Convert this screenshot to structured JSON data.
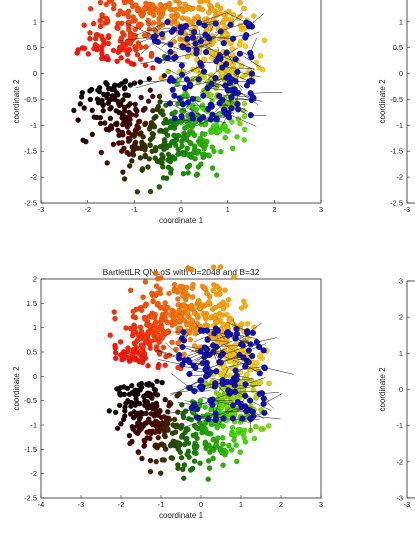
{
  "colors": {
    "gradient": [
      "#ff1000",
      "#ff8000",
      "#ffd000",
      "#40e000",
      "#108000",
      "#500000",
      "#000000"
    ],
    "blue": "#1010c0"
  },
  "chart_data": [
    {
      "type": "scatter",
      "title": "",
      "xlabel": "coordinate 1",
      "ylabel": "coordinate 2",
      "xlim": [
        -3,
        3
      ],
      "ylim": [
        -2.5,
        2
      ],
      "xticks": [
        "-3",
        "-2",
        "-1",
        "0",
        "1",
        "2",
        "3"
      ],
      "yticks": [
        "-2.5",
        "-2",
        "-1.5",
        "-1",
        "-0.5",
        "0",
        "0.5",
        "1",
        "1.5"
      ],
      "grid": false
    },
    {
      "type": "scatter",
      "title": "BartlettLR QNLoS with U=2048 and B=32",
      "xlabel": "coordinate 1",
      "ylabel": "coordinate 2",
      "xlim": [
        -4,
        3
      ],
      "ylim": [
        -2.5,
        2
      ],
      "xticks": [
        "-4",
        "-3",
        "-2",
        "-1",
        "0",
        "1",
        "2",
        "3"
      ],
      "yticks": [
        "-2.5",
        "-2",
        "-1.5",
        "-1",
        "-0.5",
        "0",
        "0.5",
        "1",
        "1.5",
        "2"
      ],
      "grid": false
    },
    {
      "type": "scatter",
      "title": "",
      "xlabel": "",
      "ylabel": "coordinate 2",
      "xlim": [
        -3,
        3
      ],
      "ylim": [
        -2.5,
        2
      ],
      "xticks": [
        "-3"
      ],
      "yticks": [
        "-2.5",
        "-2",
        "-1.5",
        "-1",
        "-0.5",
        "0",
        "0.5",
        "1",
        "1.5",
        "2"
      ],
      "grid": false
    },
    {
      "type": "scatter",
      "title": "",
      "xlabel": "",
      "ylabel": "coordinate 2",
      "xlim": [
        -3,
        3
      ],
      "ylim": [
        -3,
        3
      ],
      "xticks": [
        "-3"
      ],
      "yticks": [
        "-3",
        "-2",
        "-1",
        "0",
        "1",
        "2",
        "3"
      ],
      "grid": false
    }
  ]
}
